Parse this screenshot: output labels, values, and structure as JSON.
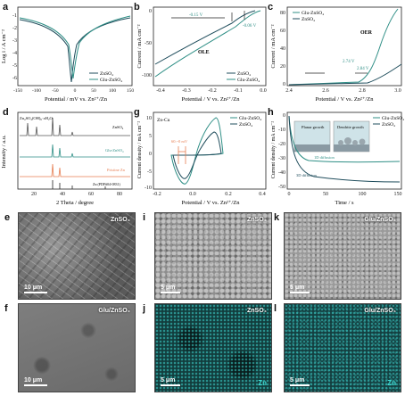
{
  "labels": {
    "a": "a",
    "b": "b",
    "c": "c",
    "d": "d",
    "g": "g",
    "h": "h",
    "e": "e",
    "i": "i",
    "k": "k",
    "f": "f",
    "j": "j",
    "l": "l"
  },
  "colors": {
    "teal": "#2f8f86",
    "dark": "#1f4d5c",
    "orange": "#e67e52",
    "cyan": "#3fd8d2"
  },
  "panel_a": {
    "ylabel": "Log i / A cm⁻²",
    "xlabel": "Potential / mV vs. Zn²⁺/Zn",
    "xticks": [
      "-150",
      "-100",
      "-50",
      "0",
      "50",
      "100",
      "150"
    ],
    "yticks": [
      "-1",
      "-2",
      "-3",
      "-4",
      "-5",
      "-6"
    ],
    "legend": [
      "ZnSO₄",
      "Glu-ZnSO₄"
    ]
  },
  "panel_b": {
    "ylabel": "Current / mA cm⁻²",
    "xlabel": "Potential / V vs. Zn²⁺/Zn",
    "xticks": [
      "-0.4",
      "-0.3",
      "-0.2",
      "-0.1",
      "0.0"
    ],
    "yticks": [
      "0",
      "-50",
      "-100"
    ],
    "ann1": "-0.15 V",
    "ann2": "-0.06 V",
    "region": "OLE",
    "legend": [
      "ZnSO₄",
      "Glu-ZnSO₄"
    ]
  },
  "panel_c": {
    "ylabel": "Current / mA cm⁻²",
    "xlabel": "Potential / V vs. Zn²⁺/Zn",
    "xticks": [
      "2.4",
      "2.6",
      "2.8",
      "3.0"
    ],
    "yticks": [
      "0",
      "20",
      "40",
      "60",
      "80"
    ],
    "ann1": "2.74 V",
    "ann2": "2.84 V",
    "region": "OER",
    "legend": [
      "Glu-ZnSO₄",
      "ZnSO₄"
    ]
  },
  "panel_d": {
    "ylabel": "Intensity / a.u.",
    "xlabel": "2 Theta / degree",
    "xticks": [
      "20",
      "40",
      "60",
      "80"
    ],
    "s1": "Zn₄SO₄(OH)₆·xH₂O",
    "s2": "ZnSO₄",
    "s3": "Glu-ZnSO₄",
    "s4": "Pristine Zn",
    "ref": "Zn (PDF#04-0831)"
  },
  "panel_g": {
    "ylabel": "Current density / mA cm⁻²",
    "xlabel": "Potential / V vs. Zn²⁺/Zn",
    "xticks": [
      "-0.2",
      "0.0",
      "0.2",
      "0.4"
    ],
    "yticks": [
      "10",
      "5",
      "0",
      "-5",
      "-10"
    ],
    "title": "Zn-Cu",
    "ann": "60.~0 mV",
    "legend": [
      "Glu-ZnSO₄",
      "ZnSO₄"
    ]
  },
  "panel_h": {
    "ylabel": "Current density / mA cm⁻²",
    "xlabel": "Time / s",
    "xticks": [
      "0",
      "50",
      "100",
      "150"
    ],
    "yticks": [
      "0",
      "-10",
      "-20",
      "-30",
      "-40",
      "-50"
    ],
    "legend": [
      "Glu-ZnSO₄",
      "ZnSO₄"
    ],
    "inset1": "Planar growth",
    "inset2": "Dendrite growth",
    "note1": "1D diffusion",
    "note2": "3D diffusion"
  },
  "sem": {
    "e": {
      "tag": "ZnSO₄",
      "scale": "10 μm"
    },
    "i": {
      "tag": "ZnSO₄",
      "scale": "5 μm"
    },
    "k": {
      "tag": "Glu/ZnSO₄",
      "scale": "5 μm"
    },
    "f": {
      "tag": "Glu/ZnSO₄",
      "scale": "10 μm"
    },
    "j": {
      "tag": "ZnSO₄",
      "scale": "5 μm",
      "element": "Zn"
    },
    "l": {
      "tag": "Glu/ZnSO₄",
      "scale": "5 μm",
      "element": "Zn"
    }
  }
}
